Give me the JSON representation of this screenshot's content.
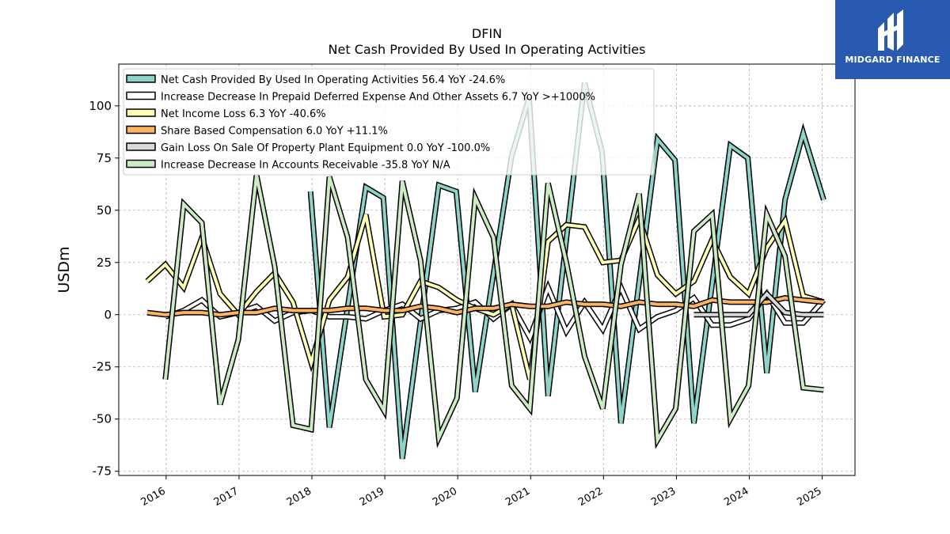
{
  "chart_data": {
    "type": "line",
    "title": "DFIN",
    "subtitle": "Net Cash Provided By Used In Operating Activities",
    "ylabel": "USDm",
    "ylim": [
      -77,
      120
    ],
    "yticks": [
      -75,
      -50,
      -25,
      0,
      25,
      50,
      75,
      100
    ],
    "xlim": [
      2015.35,
      2025.45
    ],
    "xticks": [
      2016,
      2017,
      2018,
      2019,
      2020,
      2021,
      2022,
      2023,
      2024,
      2025
    ],
    "grid": true,
    "legend_position": "top-left",
    "series": [
      {
        "name": "Net Cash Provided By Used In Operating Activities",
        "legend": "Net Cash Provided By Used In Operating Activities  56.4 YoY -24.6%",
        "color": "#8dd3c7",
        "points": [
          [
            2017.98,
            59
          ],
          [
            2018.24,
            -54
          ],
          [
            2018.74,
            61
          ],
          [
            2018.98,
            56
          ],
          [
            2019.24,
            -69
          ],
          [
            2019.74,
            62
          ],
          [
            2019.98,
            59
          ],
          [
            2020.24,
            -37
          ],
          [
            2020.74,
            76
          ],
          [
            2020.98,
            104
          ],
          [
            2021.24,
            -39
          ],
          [
            2021.74,
            111
          ],
          [
            2021.98,
            78
          ],
          [
            2022.24,
            -52
          ],
          [
            2022.74,
            84
          ],
          [
            2022.98,
            74
          ],
          [
            2023.24,
            -52
          ],
          [
            2023.74,
            81
          ],
          [
            2023.98,
            75
          ],
          [
            2024.24,
            -28
          ],
          [
            2024.49,
            55
          ],
          [
            2024.74,
            87
          ],
          [
            2025.02,
            55
          ]
        ]
      },
      {
        "name": "Increase Decrease In Prepaid Deferred Expense And Other Assets",
        "legend": "Increase Decrease In Prepaid Deferred Expense And Other Assets  6.7 YoY >+1000%",
        "color": "#ffffff",
        "points": [
          [
            2015.99,
            -1
          ],
          [
            2016.24,
            2
          ],
          [
            2016.49,
            7
          ],
          [
            2016.74,
            -1
          ],
          [
            2016.99,
            1
          ],
          [
            2017.24,
            4
          ],
          [
            2017.49,
            -3
          ],
          [
            2017.74,
            1
          ],
          [
            2017.99,
            2
          ],
          [
            2018.24,
            -1
          ],
          [
            2018.49,
            -1
          ],
          [
            2018.74,
            -2
          ],
          [
            2018.99,
            2
          ],
          [
            2019.24,
            5
          ],
          [
            2019.49,
            -2
          ],
          [
            2019.74,
            2
          ],
          [
            2019.99,
            3
          ],
          [
            2020.24,
            6
          ],
          [
            2020.49,
            -2
          ],
          [
            2020.74,
            5
          ],
          [
            2020.99,
            -11
          ],
          [
            2021.24,
            13
          ],
          [
            2021.49,
            -8
          ],
          [
            2021.74,
            6
          ],
          [
            2021.99,
            -7
          ],
          [
            2022.24,
            13
          ],
          [
            2022.49,
            -7
          ],
          [
            2022.74,
            -1
          ],
          [
            2022.99,
            2
          ],
          [
            2023.24,
            8
          ],
          [
            2023.49,
            -5
          ],
          [
            2023.74,
            -5
          ],
          [
            2023.99,
            -2
          ],
          [
            2024.24,
            10
          ],
          [
            2024.49,
            -4
          ],
          [
            2024.74,
            -4
          ],
          [
            2025.02,
            7
          ]
        ]
      },
      {
        "name": "Net Income Loss",
        "legend": "Net Income Loss  6.3 YoY -40.6%",
        "color": "#ffffb3",
        "points": [
          [
            2015.74,
            16
          ],
          [
            2015.99,
            24
          ],
          [
            2016.24,
            13
          ],
          [
            2016.49,
            37
          ],
          [
            2016.74,
            10
          ],
          [
            2016.99,
            0
          ],
          [
            2017.24,
            11
          ],
          [
            2017.49,
            20
          ],
          [
            2017.74,
            6
          ],
          [
            2017.99,
            -23
          ],
          [
            2018.24,
            7
          ],
          [
            2018.49,
            18
          ],
          [
            2018.74,
            48
          ],
          [
            2018.99,
            -1
          ],
          [
            2019.24,
            0
          ],
          [
            2019.49,
            16
          ],
          [
            2019.74,
            13
          ],
          [
            2019.99,
            7
          ],
          [
            2020.24,
            3
          ],
          [
            2020.49,
            0
          ],
          [
            2020.74,
            5
          ],
          [
            2020.99,
            -31
          ],
          [
            2021.24,
            35
          ],
          [
            2021.49,
            43
          ],
          [
            2021.74,
            42
          ],
          [
            2021.99,
            25
          ],
          [
            2022.24,
            26
          ],
          [
            2022.49,
            46
          ],
          [
            2022.74,
            19
          ],
          [
            2022.99,
            10
          ],
          [
            2023.24,
            16
          ],
          [
            2023.49,
            36
          ],
          [
            2023.74,
            18
          ],
          [
            2023.99,
            10
          ],
          [
            2024.24,
            32
          ],
          [
            2024.49,
            45
          ],
          [
            2024.74,
            9
          ],
          [
            2025.02,
            6
          ]
        ]
      },
      {
        "name": "Share Based Compensation",
        "legend": "Share Based Compensation  6.0 YoY +11.1%",
        "color": "#fdb462",
        "points": [
          [
            2015.74,
            1
          ],
          [
            2015.99,
            0
          ],
          [
            2016.24,
            1
          ],
          [
            2016.49,
            1
          ],
          [
            2016.74,
            0
          ],
          [
            2016.99,
            1
          ],
          [
            2017.24,
            1
          ],
          [
            2017.49,
            3
          ],
          [
            2017.74,
            2
          ],
          [
            2017.99,
            2
          ],
          [
            2018.24,
            2
          ],
          [
            2018.49,
            3
          ],
          [
            2018.74,
            3
          ],
          [
            2018.99,
            2
          ],
          [
            2019.24,
            2
          ],
          [
            2019.49,
            4
          ],
          [
            2019.74,
            3
          ],
          [
            2019.99,
            1
          ],
          [
            2020.24,
            3
          ],
          [
            2020.49,
            3
          ],
          [
            2020.74,
            5
          ],
          [
            2020.99,
            4
          ],
          [
            2021.24,
            4
          ],
          [
            2021.49,
            6
          ],
          [
            2021.74,
            5
          ],
          [
            2021.99,
            5
          ],
          [
            2022.24,
            4
          ],
          [
            2022.49,
            6
          ],
          [
            2022.74,
            5
          ],
          [
            2022.99,
            5
          ],
          [
            2023.24,
            4
          ],
          [
            2023.49,
            7
          ],
          [
            2023.74,
            6
          ],
          [
            2023.99,
            6
          ],
          [
            2024.24,
            6
          ],
          [
            2024.49,
            8
          ],
          [
            2024.74,
            7
          ],
          [
            2025.02,
            6
          ]
        ]
      },
      {
        "name": "Gain Loss On Sale Of Property Plant Equipment",
        "legend": "Gain Loss On Sale Of Property Plant Equipment  0.0 YoY -100.0%",
        "color": "#d9d9d9",
        "points": [
          [
            2023.24,
            0
          ],
          [
            2023.49,
            0
          ],
          [
            2023.74,
            0
          ],
          [
            2023.99,
            0
          ],
          [
            2024.24,
            10
          ],
          [
            2024.49,
            1
          ],
          [
            2024.74,
            0
          ],
          [
            2025.02,
            0
          ]
        ]
      },
      {
        "name": "Increase Decrease In Accounts Receivable",
        "legend": "Increase Decrease In Accounts Receivable  -35.8 YoY N/A",
        "color": "#ccebc5",
        "points": [
          [
            2015.99,
            -31
          ],
          [
            2016.24,
            53
          ],
          [
            2016.49,
            44
          ],
          [
            2016.74,
            -43
          ],
          [
            2016.99,
            -12
          ],
          [
            2017.24,
            67
          ],
          [
            2017.49,
            23
          ],
          [
            2017.74,
            -53
          ],
          [
            2017.99,
            -55
          ],
          [
            2018.24,
            66
          ],
          [
            2018.49,
            37
          ],
          [
            2018.74,
            -31
          ],
          [
            2018.99,
            -46
          ],
          [
            2019.24,
            64
          ],
          [
            2019.49,
            26
          ],
          [
            2019.74,
            -59
          ],
          [
            2019.99,
            -40
          ],
          [
            2020.24,
            56
          ],
          [
            2020.49,
            37
          ],
          [
            2020.74,
            -34
          ],
          [
            2020.99,
            -45
          ],
          [
            2021.24,
            63
          ],
          [
            2021.49,
            25
          ],
          [
            2021.74,
            -20
          ],
          [
            2021.99,
            -45
          ],
          [
            2022.24,
            24
          ],
          [
            2022.49,
            58
          ],
          [
            2022.74,
            -60
          ],
          [
            2022.99,
            -45
          ],
          [
            2023.24,
            40
          ],
          [
            2023.49,
            48
          ],
          [
            2023.74,
            -50
          ],
          [
            2023.99,
            -34
          ],
          [
            2024.24,
            48
          ],
          [
            2024.49,
            28
          ],
          [
            2024.74,
            -35
          ],
          [
            2025.02,
            -36
          ]
        ]
      }
    ]
  },
  "logo": {
    "name": "MIDGARD FINANCE"
  }
}
